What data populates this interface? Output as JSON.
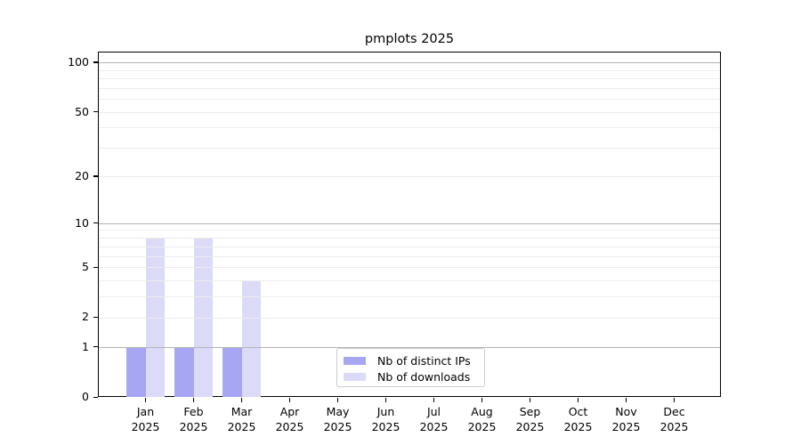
{
  "figure": {
    "title": "pmplots 2025"
  },
  "chart_data": {
    "type": "bar",
    "title": "pmplots 2025",
    "categories": [
      "Jan",
      "Feb",
      "Mar",
      "Apr",
      "May",
      "Jun",
      "Jul",
      "Aug",
      "Sep",
      "Oct",
      "Nov",
      "Dec"
    ],
    "category_year": "2025",
    "series": [
      {
        "name": "Nb of distinct IPs",
        "color": "#a6a6f3",
        "values": [
          1,
          1,
          1,
          0,
          0,
          0,
          0,
          0,
          0,
          0,
          0,
          0
        ]
      },
      {
        "name": "Nb of downloads",
        "color": "#dbdbf8",
        "values": [
          8,
          8,
          4,
          0,
          0,
          0,
          0,
          0,
          0,
          0,
          0,
          0
        ]
      }
    ],
    "xlabel": "",
    "ylabel": "",
    "y_scale": "log1p",
    "ylim": [
      0,
      116
    ],
    "y_ticks": [
      0,
      1,
      2,
      5,
      10,
      20,
      50,
      100
    ],
    "grid_lines": [
      1,
      2,
      3,
      4,
      5,
      6,
      7,
      8,
      9,
      10,
      20,
      30,
      40,
      50,
      60,
      70,
      80,
      90,
      100
    ],
    "grid_emphasis": [
      1,
      10,
      100
    ],
    "legend_position": "lower center",
    "legend_entries": [
      "Nb of distinct IPs",
      "Nb of downloads"
    ]
  },
  "colors": {
    "background": "#ffffff",
    "text": "#000000",
    "axis_frame": "#000000",
    "grid_major": "#b3b3b3",
    "grid_minor": "#ededed",
    "legend_border": "#cccccc",
    "bar_distinct_ips": "#a6a6f3",
    "bar_downloads": "#dbdbf8"
  }
}
